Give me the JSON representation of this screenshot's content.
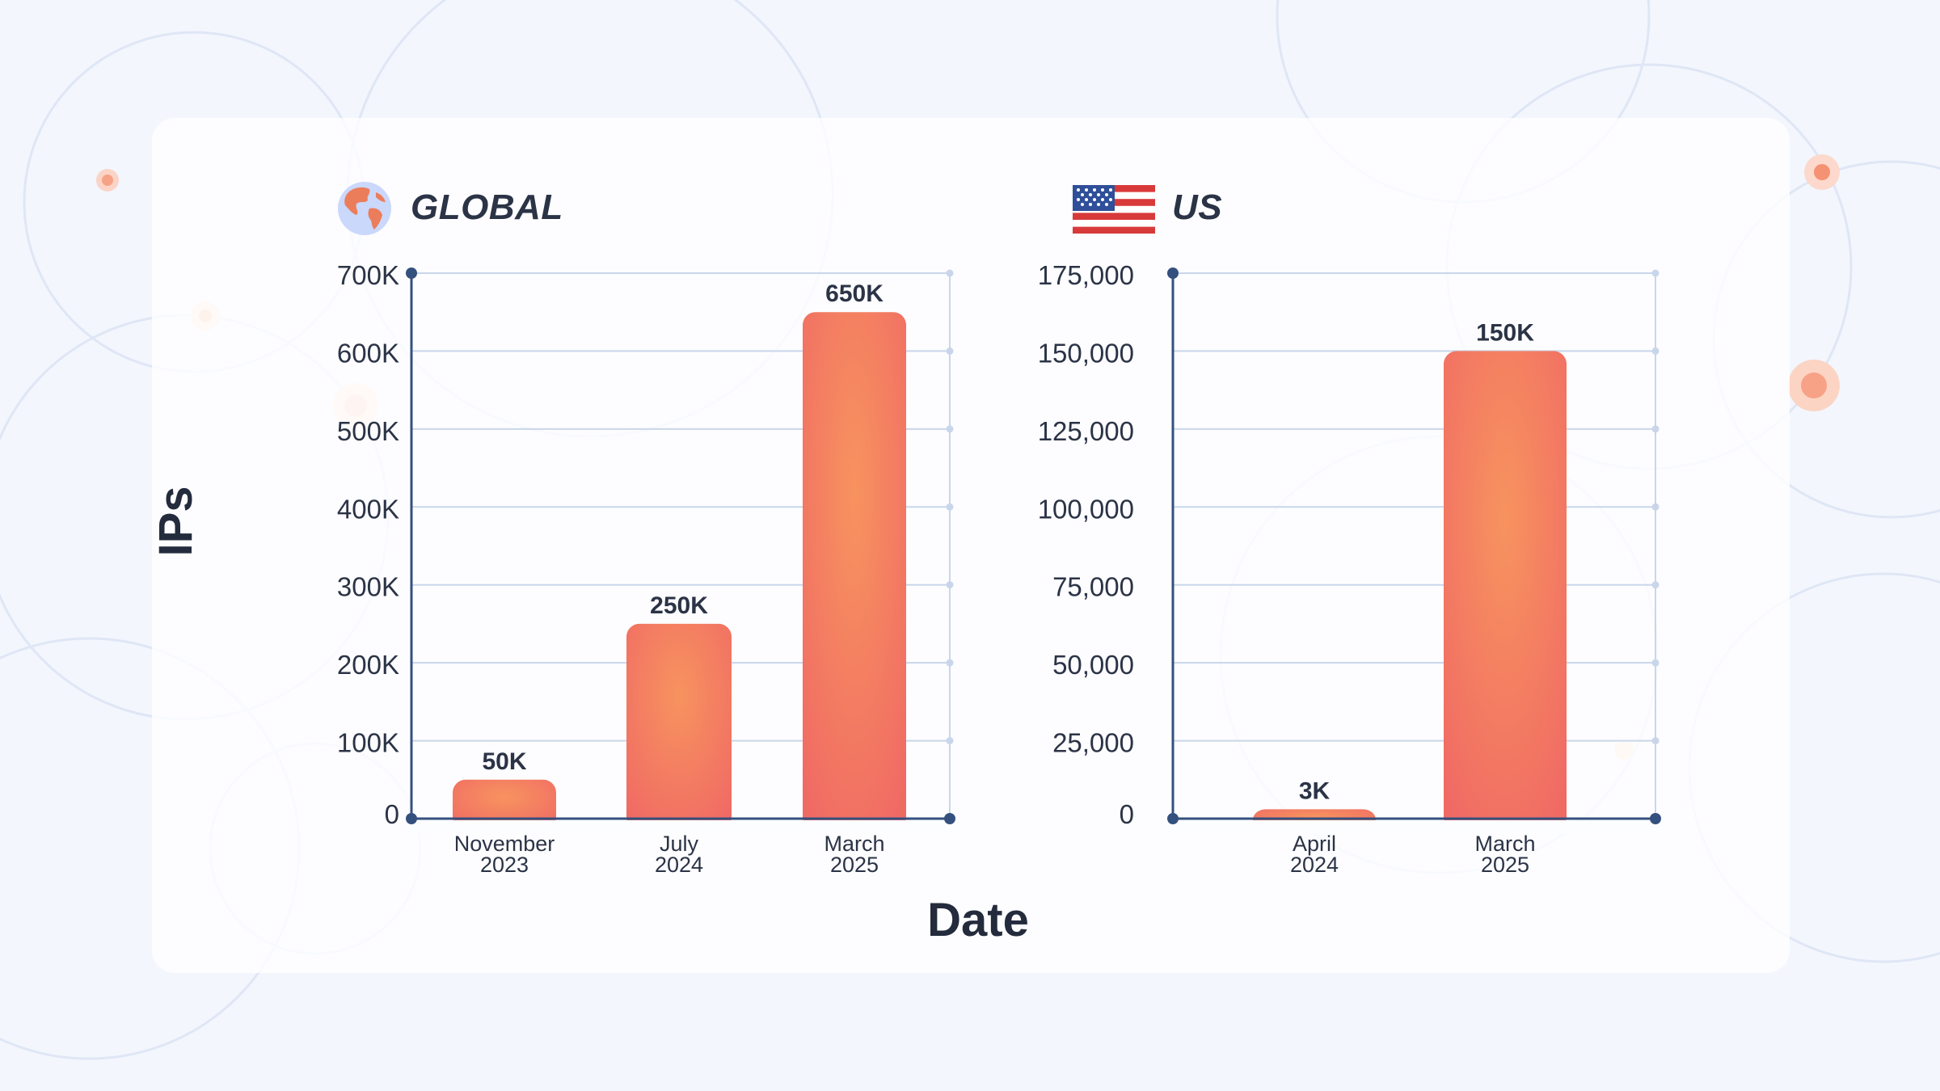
{
  "global": {
    "title": "GLOBAL",
    "icon": "globe-icon"
  },
  "us": {
    "title": "US",
    "icon": "us-flag-icon"
  },
  "y_axis_label": "IPs",
  "x_axis_label": "Date",
  "colors": {
    "bar_start": "#f7935f",
    "bar_end": "#f06a64",
    "axis": "#34507e",
    "grid": "#c9d6ea",
    "text": "#2b3346"
  },
  "chart_data": [
    {
      "type": "bar",
      "title": "GLOBAL",
      "categories": [
        [
          "November",
          "2023"
        ],
        [
          "July",
          "2024"
        ],
        [
          "March",
          "2025"
        ]
      ],
      "values": [
        50000,
        250000,
        650000
      ],
      "data_labels": [
        "50K",
        "250K",
        "650K"
      ],
      "yticks": [
        0,
        100000,
        200000,
        300000,
        400000,
        500000,
        600000,
        700000
      ],
      "ytick_labels": [
        "0",
        "100K",
        "200K",
        "300K",
        "400K",
        "500K",
        "600K",
        "700K"
      ],
      "ylim": [
        0,
        700000
      ],
      "xlabel": "Date",
      "ylabel": "IPs",
      "grid": true
    },
    {
      "type": "bar",
      "title": "US",
      "categories": [
        [
          "April",
          "2024"
        ],
        [
          "March",
          "2025"
        ]
      ],
      "values": [
        3000,
        150000
      ],
      "data_labels": [
        "3K",
        "150K"
      ],
      "yticks": [
        0,
        25000,
        50000,
        75000,
        100000,
        125000,
        150000,
        175000
      ],
      "ytick_labels": [
        "0",
        "25,000",
        "50,000",
        "75,000",
        "100,000",
        "125,000",
        "150,000",
        "175,000"
      ],
      "ylim": [
        0,
        175000
      ],
      "xlabel": "Date",
      "ylabel": "IPs",
      "grid": true
    }
  ]
}
